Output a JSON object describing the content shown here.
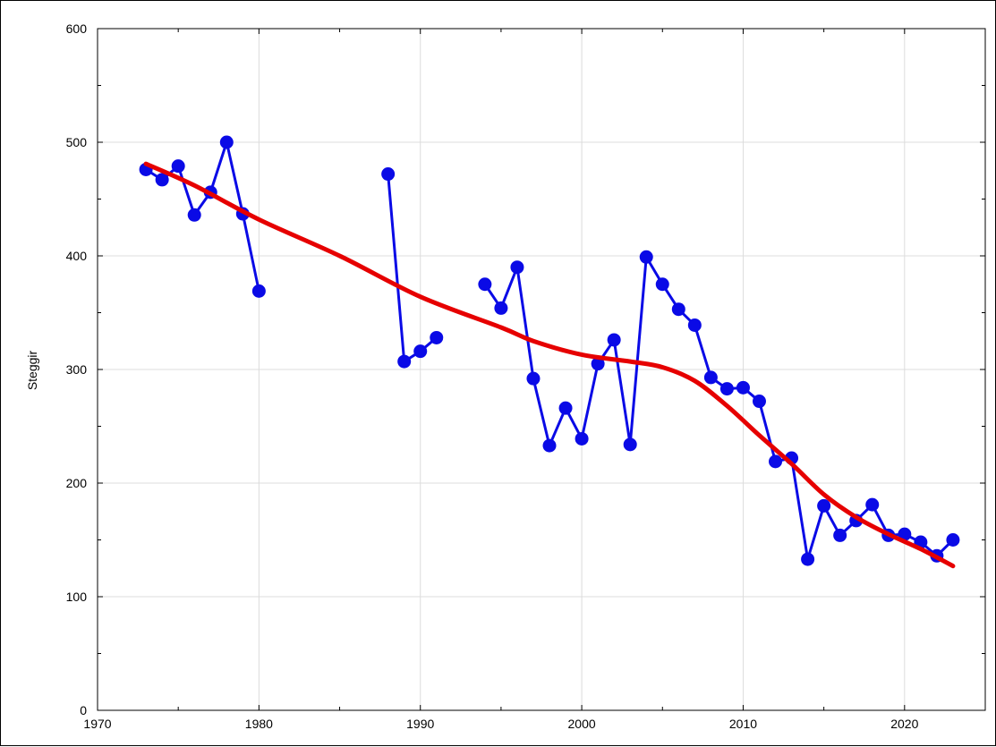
{
  "chart_data": {
    "type": "line",
    "title": "",
    "xlabel": "",
    "ylabel": "Steggir",
    "xlim": [
      1970,
      2025
    ],
    "ylim": [
      0,
      600
    ],
    "x_ticks": [
      1970,
      1980,
      1990,
      2000,
      2010,
      2020
    ],
    "y_ticks": [
      0,
      100,
      200,
      300,
      400,
      500,
      600
    ],
    "grid": true,
    "series": [
      {
        "kind": "line-with-markers",
        "color": "#0a0ae6",
        "segments": [
          [
            [
              1973,
              476
            ],
            [
              1974,
              467
            ],
            [
              1975,
              479
            ],
            [
              1976,
              436
            ],
            [
              1977,
              456
            ],
            [
              1978,
              500
            ],
            [
              1979,
              437
            ],
            [
              1980,
              369
            ]
          ],
          [
            [
              1988,
              472
            ],
            [
              1989,
              307
            ],
            [
              1990,
              316
            ],
            [
              1991,
              328
            ]
          ],
          [
            [
              1994,
              375
            ],
            [
              1995,
              354
            ],
            [
              1996,
              390
            ],
            [
              1997,
              292
            ],
            [
              1998,
              233
            ],
            [
              1999,
              266
            ],
            [
              2000,
              239
            ],
            [
              2001,
              305
            ],
            [
              2002,
              326
            ],
            [
              2003,
              234
            ],
            [
              2004,
              399
            ],
            [
              2005,
              375
            ],
            [
              2006,
              353
            ],
            [
              2007,
              339
            ],
            [
              2008,
              293
            ],
            [
              2009,
              283
            ],
            [
              2010,
              284
            ],
            [
              2011,
              272
            ],
            [
              2012,
              219
            ],
            [
              2013,
              222
            ],
            [
              2014,
              133
            ],
            [
              2015,
              180
            ],
            [
              2016,
              154
            ],
            [
              2017,
              167
            ],
            [
              2018,
              181
            ],
            [
              2019,
              154
            ],
            [
              2020,
              155
            ],
            [
              2021,
              148
            ],
            [
              2022,
              136
            ],
            [
              2023,
              150
            ]
          ]
        ]
      },
      {
        "kind": "smooth-trend",
        "color": "#e60000",
        "points": [
          [
            1973,
            481
          ],
          [
            1976,
            462
          ],
          [
            1980,
            432
          ],
          [
            1985,
            400
          ],
          [
            1990,
            364
          ],
          [
            1995,
            337
          ],
          [
            1997,
            325
          ],
          [
            2000,
            313
          ],
          [
            2003,
            307
          ],
          [
            2005,
            302
          ],
          [
            2007,
            290
          ],
          [
            2009,
            268
          ],
          [
            2011,
            242
          ],
          [
            2013,
            217
          ],
          [
            2015,
            190
          ],
          [
            2017,
            170
          ],
          [
            2019,
            155
          ],
          [
            2021,
            142
          ],
          [
            2023,
            127
          ]
        ]
      }
    ]
  }
}
